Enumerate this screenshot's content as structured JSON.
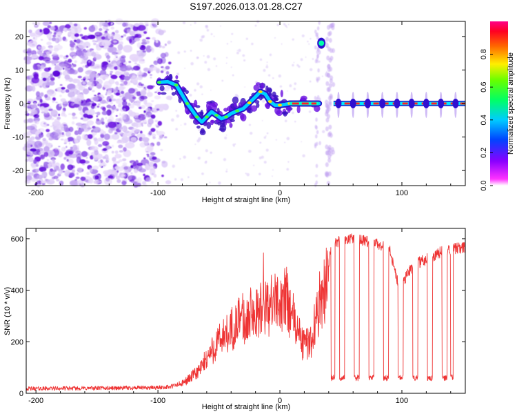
{
  "figure_title": "S197.2026.013.01.28.C27",
  "colors": {
    "snr_line": "#ee3333",
    "frame": "#000000",
    "background": "#ffffff",
    "scatter_low": "#c8a8f0",
    "scatter_high": "#6a10e0"
  },
  "chart_data": [
    {
      "type": "heatmap",
      "title": "",
      "xlabel": "Height of straight line (km)",
      "ylabel": "Frequency (Hz)",
      "xlim": [
        -208,
        152
      ],
      "ylim": [
        -24.5,
        24.5
      ],
      "xticks": [
        -200,
        -100,
        0,
        100
      ],
      "xtick_labels": [
        "-200",
        "-100",
        "0",
        "100"
      ],
      "yticks": [
        -20,
        -10,
        0,
        10,
        20
      ],
      "ytick_labels": [
        "-20",
        "-10",
        "0",
        "10",
        "20"
      ],
      "noise_region_km": [
        -208,
        -88
      ],
      "signal_track": [
        {
          "x": -99,
          "y": 6.3
        },
        {
          "x": -92,
          "y": 6.5
        },
        {
          "x": -85,
          "y": 5.5
        },
        {
          "x": -80,
          "y": 2.5
        },
        {
          "x": -76,
          "y": 0
        },
        {
          "x": -72,
          "y": -2
        },
        {
          "x": -68,
          "y": -4
        },
        {
          "x": -64,
          "y": -5.5
        },
        {
          "x": -60,
          "y": -4
        },
        {
          "x": -56,
          "y": -2.5
        },
        {
          "x": -52,
          "y": -3.5
        },
        {
          "x": -48,
          "y": -4.5
        },
        {
          "x": -44,
          "y": -4
        },
        {
          "x": -40,
          "y": -3
        },
        {
          "x": -35,
          "y": -2.2
        },
        {
          "x": -30,
          "y": -1.5
        },
        {
          "x": -25,
          "y": 0.2
        },
        {
          "x": -20,
          "y": 2
        },
        {
          "x": -16,
          "y": 3.5
        },
        {
          "x": -12,
          "y": 2.8
        },
        {
          "x": -8,
          "y": 0.6
        },
        {
          "x": -4,
          "y": -0.5
        },
        {
          "x": 0,
          "y": -0.5
        },
        {
          "x": 4,
          "y": -0.3
        },
        {
          "x": 8,
          "y": 0
        },
        {
          "x": 32,
          "y": 0
        }
      ],
      "flat_segment": {
        "x_start": 44,
        "x_end": 152,
        "y": 0
      },
      "gap_km": [
        31,
        44
      ],
      "bright_blob": {
        "x": 34,
        "y": 18
      },
      "periodic_blobs_km": [
        48,
        60,
        72,
        84,
        96,
        108,
        120,
        132,
        144
      ],
      "colorbar": {
        "label": "Normalized spectral amplitude",
        "ticks": [
          0.0,
          0.2,
          0.4,
          0.6,
          0.8
        ],
        "tick_labels": [
          "0.0",
          "0.2",
          "0.4",
          "0.6",
          "0.8"
        ],
        "range": [
          0,
          1
        ],
        "gradient": [
          "#ffffff",
          "#ff00ff",
          "#0000ff",
          "#00ffff",
          "#00ff00",
          "#ffff00",
          "#ff0000",
          "#ff0099"
        ]
      }
    },
    {
      "type": "line",
      "title": "",
      "xlabel": "Height of straight line (km)",
      "ylabel": "SNR (10 * v/v)",
      "xlim": [
        -208,
        152
      ],
      "ylim": [
        0,
        640
      ],
      "xticks": [
        -200,
        -100,
        0,
        100
      ],
      "xtick_labels": [
        "-200",
        "-100",
        "0",
        "100"
      ],
      "yticks": [
        0,
        200,
        400,
        600
      ],
      "ytick_labels": [
        "0",
        "200",
        "400",
        "600"
      ],
      "series": [
        {
          "name": "SNR",
          "x": [
            -208,
            -180,
            -150,
            -120,
            -100,
            -90,
            -80,
            -75,
            -70,
            -65,
            -60,
            -55,
            -50,
            -45,
            -40,
            -35,
            -30,
            -25,
            -20,
            -15,
            -10,
            -5,
            0,
            5,
            10,
            15,
            18,
            22,
            26,
            30,
            34,
            38,
            42,
            50,
            60,
            70,
            80,
            90,
            96,
            100,
            105,
            110,
            120,
            130,
            140,
            152
          ],
          "values": [
            18,
            19,
            20,
            21,
            22,
            25,
            38,
            55,
            72,
            95,
            135,
            170,
            200,
            225,
            250,
            270,
            290,
            305,
            315,
            325,
            335,
            345,
            360,
            370,
            300,
            240,
            195,
            190,
            210,
            300,
            380,
            425,
            570,
            595,
            600,
            590,
            580,
            560,
            440,
            410,
            470,
            500,
            520,
            545,
            560,
            565
          ],
          "dropouts_km": [
            [
              42,
              45
            ],
            [
              49,
              53
            ],
            [
              61,
              65
            ],
            [
              73,
              77
            ],
            [
              85,
              89
            ],
            [
              97,
              101
            ],
            [
              109,
              113
            ],
            [
              121,
              125
            ],
            [
              133,
              137
            ],
            [
              140,
              142
            ]
          ],
          "dropout_level": 60
        }
      ]
    }
  ]
}
